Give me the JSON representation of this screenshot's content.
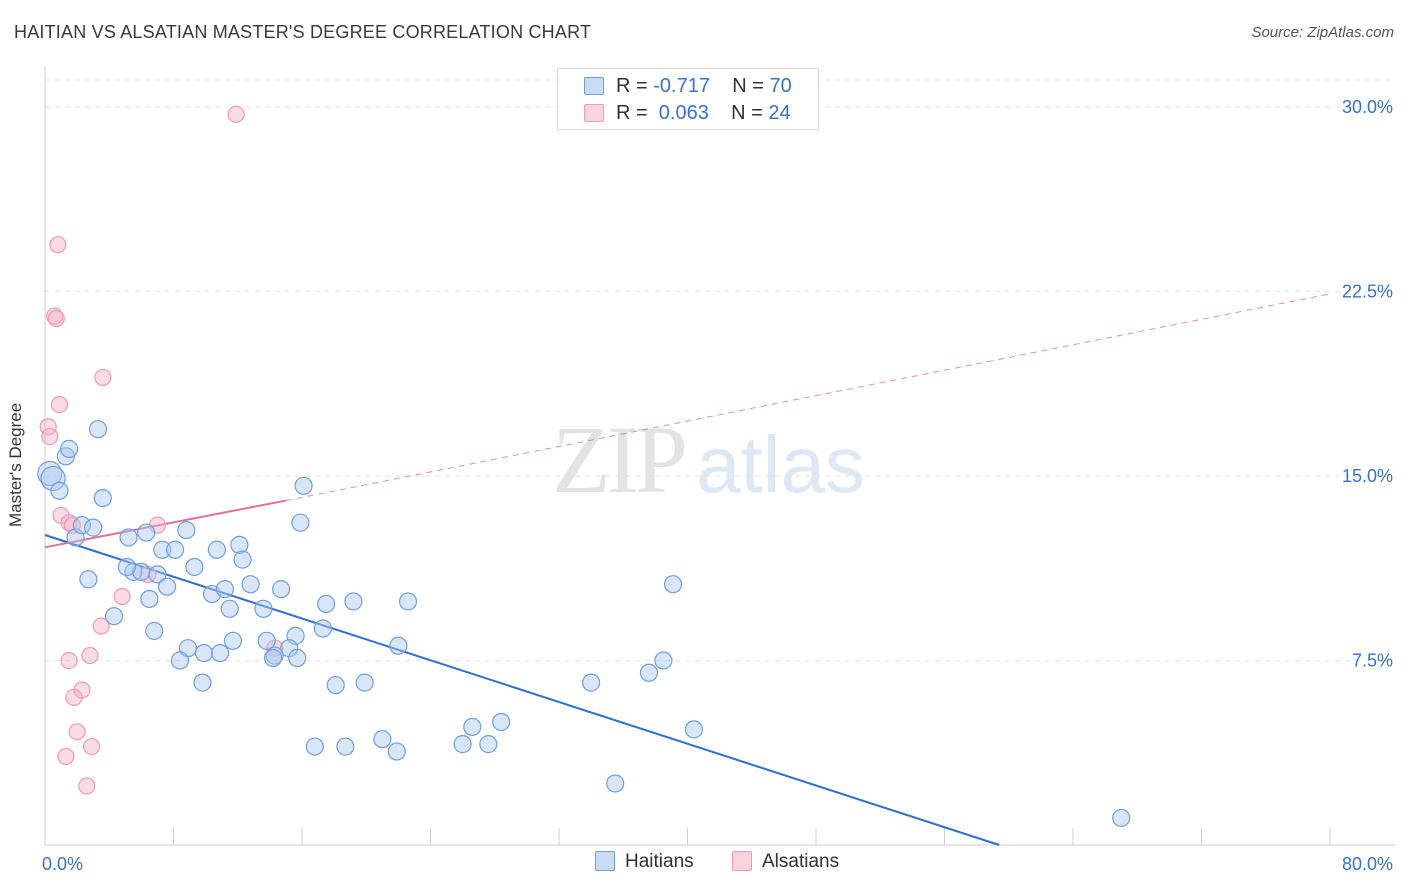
{
  "title": "HAITIAN VS ALSATIAN MASTER'S DEGREE CORRELATION CHART",
  "source": "Source: ZipAtlas.com",
  "watermark": {
    "zip": "ZIP",
    "atlas": "atlas"
  },
  "legend": {
    "rows": [
      {
        "r_label": "R = ",
        "r_value": "-0.717",
        "n_label": "N = ",
        "n_value": "70",
        "color": "#6f9fe0"
      },
      {
        "r_label": "R = ",
        "r_value": " 0.063",
        "n_label": "N = ",
        "n_value": "24",
        "color": "#f09ab5"
      }
    ]
  },
  "bottom_legend": [
    {
      "label": "Haitians",
      "color": "#6f9fe0"
    },
    {
      "label": "Alsatians",
      "color": "#f09ab5"
    }
  ],
  "chart_data": {
    "type": "scatter",
    "title": "HAITIAN VS ALSATIAN MASTER'S DEGREE CORRELATION CHART",
    "xlabel": "",
    "ylabel": "Master's Degree",
    "xlim": [
      0,
      80
    ],
    "ylim": [
      0,
      31.5
    ],
    "x_tick_labels": [
      "0.0%",
      "80.0%"
    ],
    "y_ticks": [
      7.5,
      15.0,
      22.5,
      30.0
    ],
    "y_tick_labels": [
      "7.5%",
      "15.0%",
      "22.5%",
      "30.0%"
    ],
    "grid": true,
    "colors": {
      "haitians": "#6f9fe0",
      "alsatians": "#f09ab5",
      "haitians_line": "#2f6fd0",
      "alsatians_line": "#e0709a"
    },
    "series": [
      {
        "name": "Haitians",
        "points": [
          [
            0.3,
            15.1
          ],
          [
            0.5,
            14.9
          ],
          [
            0.9,
            14.4
          ],
          [
            1.3,
            15.8
          ],
          [
            1.5,
            16.1
          ],
          [
            3.3,
            16.9
          ],
          [
            3.6,
            14.1
          ],
          [
            1.9,
            12.5
          ],
          [
            2.3,
            13.0
          ],
          [
            3.0,
            12.9
          ],
          [
            5.2,
            12.5
          ],
          [
            6.3,
            12.7
          ],
          [
            8.8,
            12.8
          ],
          [
            7.3,
            12.0
          ],
          [
            8.1,
            12.0
          ],
          [
            10.7,
            12.0
          ],
          [
            12.1,
            12.2
          ],
          [
            12.3,
            11.6
          ],
          [
            5.5,
            11.1
          ],
          [
            6.0,
            11.1
          ],
          [
            7.0,
            11.0
          ],
          [
            5.1,
            11.3
          ],
          [
            9.3,
            11.3
          ],
          [
            2.7,
            10.8
          ],
          [
            7.6,
            10.5
          ],
          [
            10.4,
            10.2
          ],
          [
            11.2,
            10.4
          ],
          [
            12.8,
            10.6
          ],
          [
            14.7,
            10.4
          ],
          [
            16.1,
            14.6
          ],
          [
            15.9,
            13.1
          ],
          [
            6.5,
            10.0
          ],
          [
            19.2,
            9.9
          ],
          [
            22.6,
            9.9
          ],
          [
            17.5,
            9.8
          ],
          [
            11.5,
            9.6
          ],
          [
            13.6,
            9.6
          ],
          [
            4.3,
            9.3
          ],
          [
            6.8,
            8.7
          ],
          [
            17.3,
            8.8
          ],
          [
            11.7,
            8.3
          ],
          [
            13.8,
            8.3
          ],
          [
            15.6,
            8.5
          ],
          [
            22.0,
            8.1
          ],
          [
            8.9,
            8.0
          ],
          [
            15.2,
            8.0
          ],
          [
            9.9,
            7.8
          ],
          [
            10.9,
            7.8
          ],
          [
            14.3,
            7.7
          ],
          [
            8.4,
            7.5
          ],
          [
            14.2,
            7.6
          ],
          [
            15.7,
            7.6
          ],
          [
            37.6,
            7.0
          ],
          [
            38.5,
            7.5
          ],
          [
            9.8,
            6.6
          ],
          [
            18.1,
            6.5
          ],
          [
            19.9,
            6.6
          ],
          [
            34.0,
            6.6
          ],
          [
            39.1,
            10.6
          ],
          [
            26.6,
            4.8
          ],
          [
            28.4,
            5.0
          ],
          [
            40.4,
            4.7
          ],
          [
            16.8,
            4.0
          ],
          [
            18.7,
            4.0
          ],
          [
            21.0,
            4.3
          ],
          [
            21.9,
            3.8
          ],
          [
            26.0,
            4.1
          ],
          [
            27.6,
            4.1
          ],
          [
            35.5,
            2.5
          ],
          [
            67.0,
            1.1
          ]
        ],
        "trendline": {
          "x": [
            0,
            59.4
          ],
          "y": [
            12.6,
            0
          ]
        }
      },
      {
        "name": "Alsatians",
        "points": [
          [
            11.9,
            29.7
          ],
          [
            0.8,
            24.4
          ],
          [
            0.6,
            21.5
          ],
          [
            0.7,
            21.4
          ],
          [
            3.6,
            19.0
          ],
          [
            0.9,
            17.9
          ],
          [
            0.2,
            17.0
          ],
          [
            0.3,
            16.6
          ],
          [
            1.0,
            13.4
          ],
          [
            1.5,
            13.1
          ],
          [
            1.7,
            13.0
          ],
          [
            7.0,
            13.0
          ],
          [
            6.4,
            11.0
          ],
          [
            4.8,
            10.1
          ],
          [
            3.5,
            8.9
          ],
          [
            2.8,
            7.7
          ],
          [
            1.5,
            7.5
          ],
          [
            2.3,
            6.3
          ],
          [
            1.8,
            6.0
          ],
          [
            14.3,
            8.0
          ],
          [
            2.0,
            4.6
          ],
          [
            2.9,
            4.0
          ],
          [
            1.3,
            3.6
          ],
          [
            2.6,
            2.4
          ]
        ],
        "trendline": {
          "x": [
            0,
            15.0
          ],
          "y": [
            12.1,
            14.0
          ]
        },
        "trendline_extension": {
          "x": [
            15.0,
            80
          ],
          "y": [
            14.0,
            22.4
          ]
        }
      }
    ]
  }
}
